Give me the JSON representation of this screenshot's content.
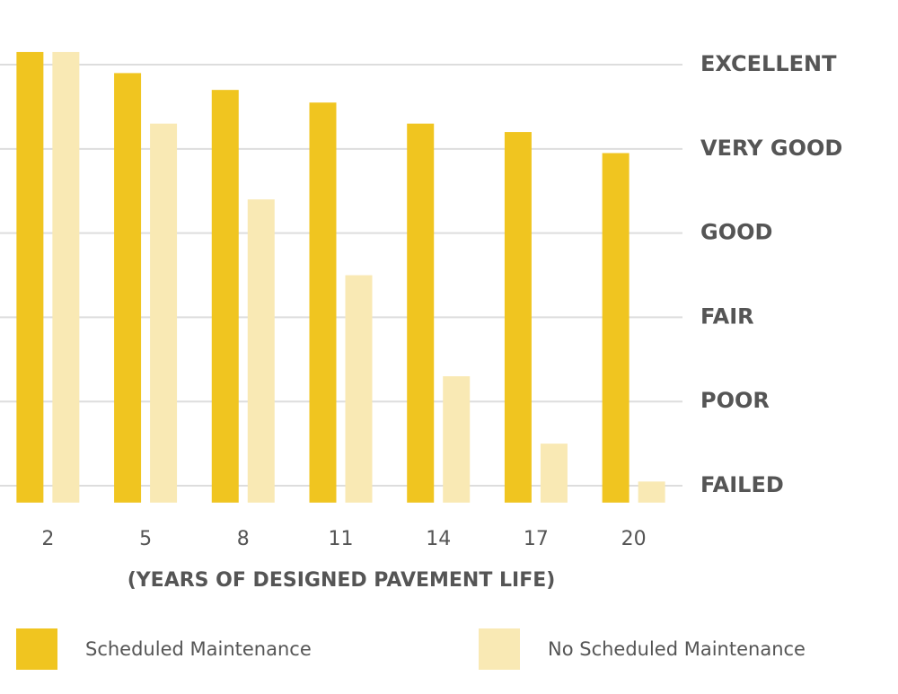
{
  "chart_data": {
    "type": "bar",
    "x_label": "(YEARS OF DESIGNED PAVEMENT LIFE)",
    "categories": [
      "2",
      "5",
      "8",
      "11",
      "14",
      "17",
      "20"
    ],
    "series": [
      {
        "name": "Scheduled Maintenance",
        "color": "#f0c520",
        "values": [
          5.15,
          4.9,
          4.7,
          4.55,
          4.3,
          4.2,
          3.95
        ]
      },
      {
        "name": "No Scheduled Maintenance",
        "color": "#f9e9b4",
        "values": [
          5.15,
          4.3,
          3.4,
          2.5,
          1.3,
          0.5,
          0.05
        ]
      }
    ],
    "ylim": [
      -0.2,
      5.4
    ],
    "yticks": [
      {
        "value": 0,
        "label": "FAILED"
      },
      {
        "value": 1,
        "label": "POOR"
      },
      {
        "value": 2,
        "label": "FAIR"
      },
      {
        "value": 3,
        "label": "GOOD"
      },
      {
        "value": 4,
        "label": "VERY GOOD"
      },
      {
        "value": 5,
        "label": "EXCELLENT"
      }
    ],
    "grid": true,
    "legend": "bottom"
  }
}
